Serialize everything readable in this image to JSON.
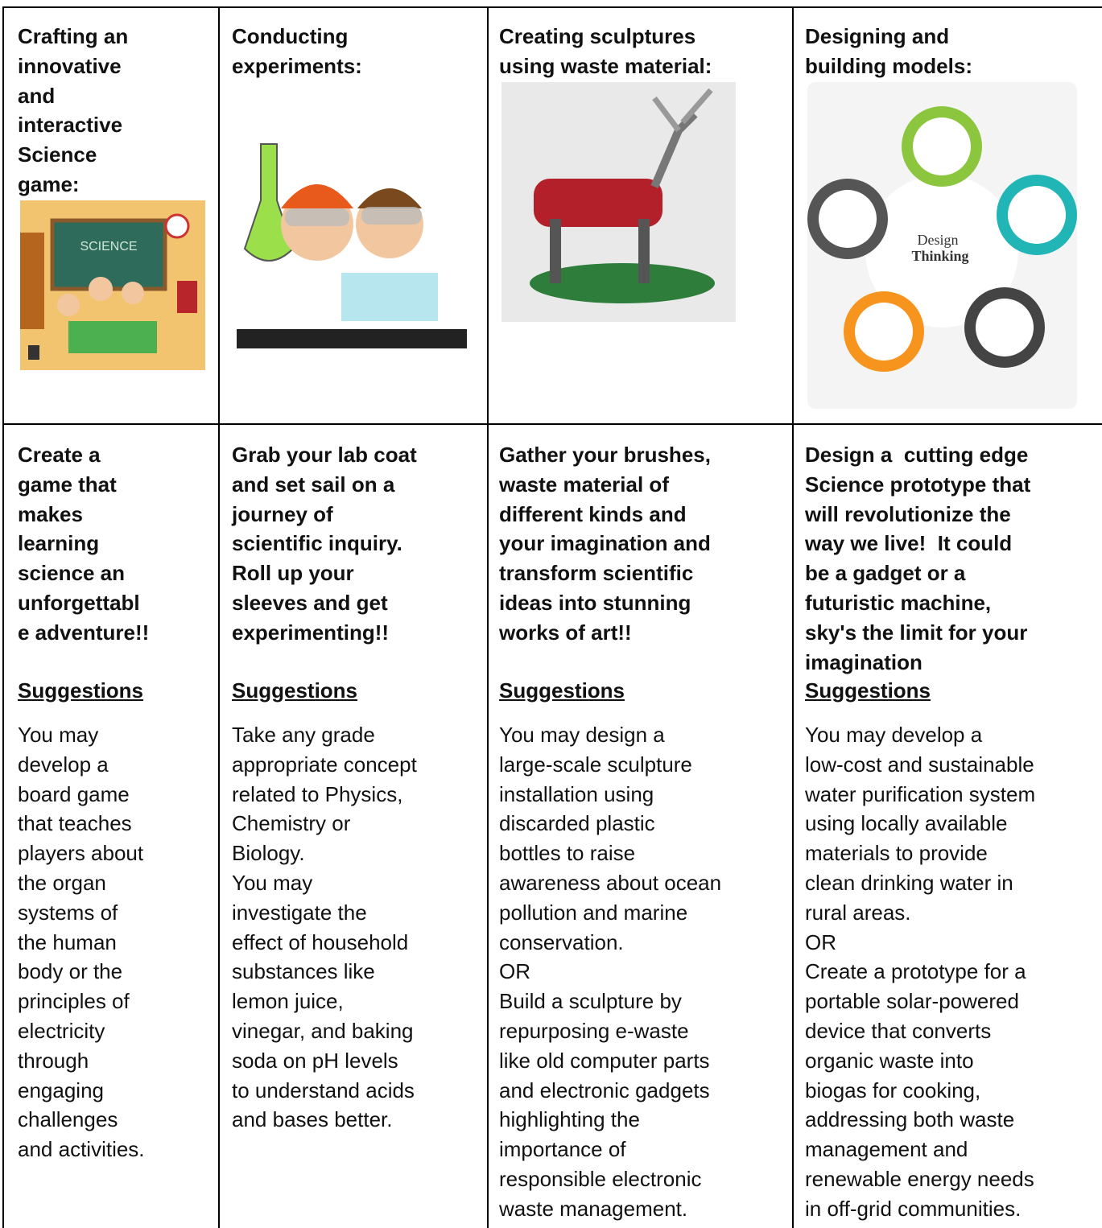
{
  "table": {
    "rows": [
      [
        {
          "title": [
            "Crafting an",
            "innovative",
            "and",
            "interactive",
            "Science",
            "game:"
          ],
          "image_text": [
            "SCIENCE"
          ]
        },
        {
          "title": [
            "Conducting",
            "experiments:"
          ]
        },
        {
          "title": [
            "Creating sculptures",
            "using waste material:"
          ]
        },
        {
          "title": [
            "Designing and",
            "building models:"
          ],
          "image_text": [
            "Design",
            "Thinking"
          ]
        }
      ],
      [
        {
          "intro": [
            "Create a",
            "game that",
            "makes",
            "learning",
            "science an",
            "unforgettabl",
            "e adventure!!"
          ],
          "heading": "Suggestions",
          "body": [
            "You may",
            "develop a",
            "board game",
            "that teaches",
            "players about",
            "the organ",
            "systems of",
            "the human",
            "body or the",
            "principles of",
            "electricity",
            "through",
            "engaging",
            "challenges",
            "and activities."
          ]
        },
        {
          "intro": [
            "Grab your lab coat",
            "and set sail on a",
            "journey of",
            "scientific inquiry.",
            "Roll up your",
            "sleeves and get",
            "experimenting!!"
          ],
          "heading": "Suggestions",
          "body": [
            "Take any grade",
            "appropriate concept",
            "related to Physics,",
            "Chemistry or",
            "Biology.",
            "You may",
            "investigate the",
            "effect of household",
            "substances like",
            "lemon juice,",
            "vinegar, and baking",
            "soda on pH levels",
            "to understand acids",
            "and bases better."
          ]
        },
        {
          "intro": [
            "Gather your brushes,",
            "waste material of",
            "different kinds and",
            "your imagination and",
            "transform scientific",
            "ideas into stunning",
            "works of art!!"
          ],
          "heading": "Suggestions",
          "body": [
            "You may design a",
            "large-scale sculpture",
            "installation using",
            "discarded plastic",
            "bottles to raise",
            "awareness about ocean",
            "pollution and marine",
            "conservation.",
            "OR",
            "Build a sculpture by",
            "repurposing e-waste",
            "like old computer parts",
            "and electronic gadgets",
            "highlighting the",
            "importance of",
            "responsible electronic",
            "waste management."
          ]
        },
        {
          "intro": [
            "Design a  cutting edge",
            "Science prototype that",
            "will revolutionize the",
            "way we live!  It could",
            "be a gadget or a",
            "futuristic machine,",
            "sky's the limit for your",
            "imagination"
          ],
          "heading": "Suggestions",
          "body": [
            "You may develop a",
            "low-cost and sustainable",
            "water purification system",
            "using locally available",
            "materials to provide",
            "clean drinking water in",
            "rural areas.",
            "OR",
            "Create a prototype for a",
            "portable solar-powered",
            "device that converts",
            "organic waste into",
            "biogas for cooking,",
            "addressing both waste",
            "management and",
            "renewable energy needs",
            "in off-grid communities."
          ]
        }
      ]
    ]
  }
}
